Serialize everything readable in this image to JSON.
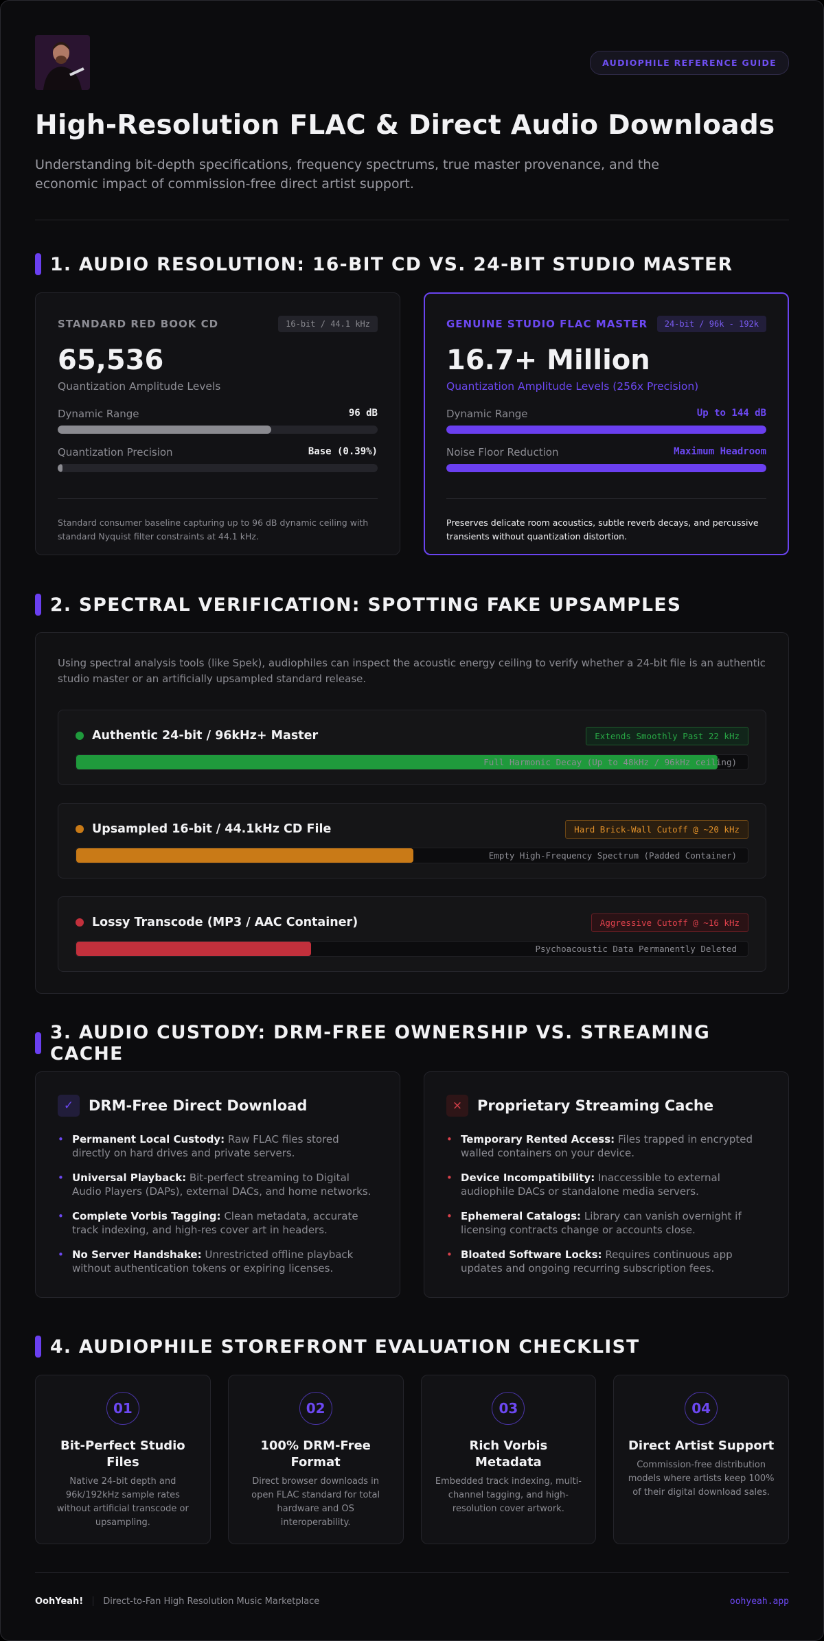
{
  "header": {
    "badge": "AUDIOPHILE REFERENCE GUIDE",
    "title": "High-Resolution FLAC & Direct Audio Downloads",
    "subtitle": "Understanding bit-depth specifications, frequency spectrums, true master provenance, and the economic impact of commission-free direct artist support."
  },
  "sections": [
    {
      "heading": "1. AUDIO RESOLUTION: 16-BIT CD VS. 24-BIT STUDIO MASTER",
      "cards": [
        {
          "label": "STANDARD RED BOOK CD",
          "tag": "16-bit / 44.1 kHz",
          "big": "65,536",
          "caption": "Quantization Amplitude Levels",
          "metrics": [
            {
              "label": "Dynamic Range",
              "value": "96 dB"
            },
            {
              "label": "Quantization Precision",
              "value": "Base (0.39%)"
            }
          ],
          "note": "Standard consumer baseline capturing up to 96 dB dynamic ceiling with standard Nyquist filter constraints at 44.1 kHz."
        },
        {
          "label": "GENUINE STUDIO FLAC MASTER",
          "tag": "24-bit / 96k - 192k",
          "big": "16.7+ Million",
          "caption": "Quantization Amplitude Levels (256x Precision)",
          "metrics": [
            {
              "label": "Dynamic Range",
              "value": "Up to 144 dB"
            },
            {
              "label": "Noise Floor Reduction",
              "value": "Maximum Headroom"
            }
          ],
          "note": "Preserves delicate room acoustics, subtle reverb decays, and percussive transients without quantization distortion."
        }
      ]
    },
    {
      "heading": "2. SPECTRAL VERIFICATION: SPOTTING FAKE UPSAMPLES",
      "intro": "Using spectral analysis tools (like Spek), audiophiles can inspect the acoustic energy ceiling to verify whether a 24-bit file is an authentic studio master or an artificially upsampled standard release.",
      "rows": [
        {
          "title": "Authentic 24-bit / 96kHz+ Master",
          "tag": "Extends Smoothly Past 22 kHz",
          "bar_label": "Full Harmonic Decay (Up to 48kHz / 96kHz ceiling)"
        },
        {
          "title": "Upsampled 16-bit / 44.1kHz CD File",
          "tag": "Hard Brick-Wall Cutoff @ ~20 kHz",
          "bar_label": "Empty High-Frequency Spectrum (Padded Container)"
        },
        {
          "title": "Lossy Transcode (MP3 / AAC Container)",
          "tag": "Aggressive Cutoff @ ~16 kHz",
          "bar_label": "Psychoacoustic Data Permanently Deleted"
        }
      ]
    },
    {
      "heading": "3. AUDIO CUSTODY: DRM-FREE OWNERSHIP VS. STREAMING CACHE",
      "cards": [
        {
          "icon": "✓",
          "title": "DRM-Free Direct Download",
          "items": [
            {
              "term": "Permanent Local Custody:",
              "text": "Raw FLAC files stored directly on hard drives and private servers."
            },
            {
              "term": "Universal Playback:",
              "text": "Bit-perfect streaming to Digital Audio Players (DAPs), external DACs, and home networks."
            },
            {
              "term": "Complete Vorbis Tagging:",
              "text": "Clean metadata, accurate track indexing, and high-res cover art in headers."
            },
            {
              "term": "No Server Handshake:",
              "text": "Unrestricted offline playback without authentication tokens or expiring licenses."
            }
          ]
        },
        {
          "icon": "×",
          "title": "Proprietary Streaming Cache",
          "items": [
            {
              "term": "Temporary Rented Access:",
              "text": "Files trapped in encrypted walled containers on your device."
            },
            {
              "term": "Device Incompatibility:",
              "text": "Inaccessible to external audiophile DACs or standalone media servers."
            },
            {
              "term": "Ephemeral Catalogs:",
              "text": "Library can vanish overnight if licensing contracts change or accounts close."
            },
            {
              "term": "Bloated Software Locks:",
              "text": "Requires continuous app updates and ongoing recurring subscription fees."
            }
          ]
        }
      ]
    },
    {
      "heading": "4. AUDIOPHILE STOREFRONT EVALUATION CHECKLIST",
      "cards": [
        {
          "number": "01",
          "title": "Bit-Perfect Studio Files",
          "text": "Native 24-bit depth and 96k/192kHz sample rates without artificial transcode or upsampling."
        },
        {
          "number": "02",
          "title": "100% DRM-Free Format",
          "text": "Direct browser downloads in open FLAC standard for total hardware and OS interoperability."
        },
        {
          "number": "03",
          "title": "Rich Vorbis Metadata",
          "text": "Embedded track indexing, multi-channel tagging, and high-resolution cover artwork."
        },
        {
          "number": "04",
          "title": "Direct Artist Support",
          "text": "Commission-free distribution models where artists keep 100% of their digital download sales."
        }
      ]
    }
  ],
  "footer": {
    "brand": "OohYeah!",
    "tagline": "Direct-to-Fan High Resolution Music Marketplace",
    "link": "oohyeah.app"
  }
}
